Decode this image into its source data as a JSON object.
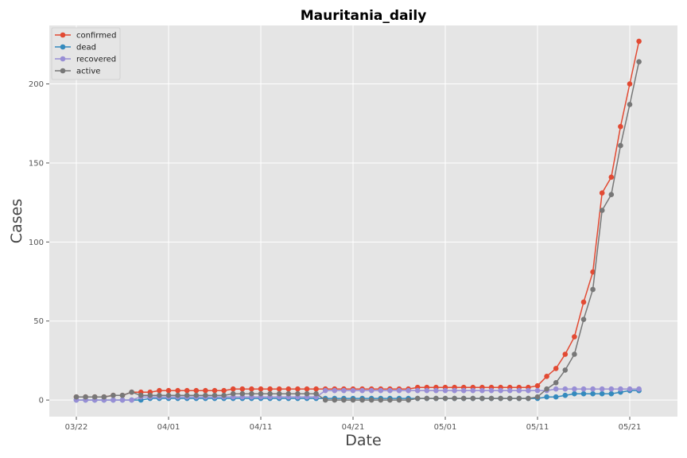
{
  "chart_data": {
    "type": "line",
    "title": "Mauritania_daily",
    "xlabel": "Date",
    "ylabel": "Cases",
    "x_start": "2020-03-22",
    "x_tick_labels": [
      "03/22",
      "04/01",
      "04/11",
      "04/21",
      "05/01",
      "05/11",
      "05/21"
    ],
    "y_ticks": [
      0,
      50,
      100,
      150,
      200
    ],
    "ylim": [
      -10.5,
      237
    ],
    "grid": true,
    "legend_position": "top-left",
    "colors": {
      "background": "#E5E5E5",
      "grid": "#FFFFFF",
      "confirmed": "#E24A33",
      "dead": "#348ABD",
      "recovered": "#988ED5",
      "active": "#777777"
    },
    "series": [
      {
        "name": "confirmed",
        "color": "#E24A33",
        "values": [
          2,
          2,
          2,
          2,
          3,
          3,
          5,
          5,
          5,
          6,
          6,
          6,
          6,
          6,
          6,
          6,
          6,
          7,
          7,
          7,
          7,
          7,
          7,
          7,
          7,
          7,
          7,
          7,
          7,
          7,
          7,
          7,
          7,
          7,
          7,
          7,
          7,
          8,
          8,
          8,
          8,
          8,
          8,
          8,
          8,
          8,
          8,
          8,
          8,
          8,
          9,
          15,
          20,
          29,
          40,
          62,
          81,
          131,
          141,
          173,
          200,
          227
        ]
      },
      {
        "name": "dead",
        "color": "#348ABD",
        "values": [
          0,
          0,
          0,
          0,
          0,
          0,
          0,
          0,
          1,
          1,
          1,
          1,
          1,
          1,
          1,
          1,
          1,
          1,
          1,
          1,
          1,
          1,
          1,
          1,
          1,
          1,
          1,
          1,
          1,
          1,
          1,
          1,
          1,
          1,
          1,
          1,
          1,
          1,
          1,
          1,
          1,
          1,
          1,
          1,
          1,
          1,
          1,
          1,
          1,
          1,
          1,
          2,
          2,
          3,
          4,
          4,
          4,
          4,
          4,
          5,
          6,
          6
        ]
      },
      {
        "name": "recovered",
        "color": "#988ED5",
        "values": [
          0,
          0,
          0,
          0,
          0,
          0,
          0,
          2,
          2,
          2,
          2,
          2,
          2,
          2,
          2,
          2,
          2,
          2,
          2,
          2,
          2,
          2,
          2,
          2,
          2,
          2,
          2,
          6,
          6,
          6,
          6,
          6,
          6,
          6,
          6,
          6,
          6,
          6,
          6,
          6,
          6,
          6,
          6,
          6,
          6,
          6,
          6,
          6,
          6,
          6,
          6,
          6,
          7,
          7,
          7,
          7,
          7,
          7,
          7,
          7,
          7,
          7
        ]
      },
      {
        "name": "active",
        "color": "#777777",
        "values": [
          2,
          2,
          2,
          2,
          3,
          3,
          5,
          3,
          3,
          3,
          3,
          3,
          3,
          3,
          3,
          3,
          3,
          4,
          4,
          4,
          4,
          4,
          4,
          4,
          4,
          4,
          4,
          0,
          0,
          0,
          0,
          0,
          0,
          0,
          0,
          0,
          0,
          1,
          1,
          1,
          1,
          1,
          1,
          1,
          1,
          1,
          1,
          1,
          1,
          1,
          2,
          7,
          11,
          19,
          29,
          51,
          70,
          120,
          130,
          161,
          187,
          214
        ]
      }
    ]
  }
}
